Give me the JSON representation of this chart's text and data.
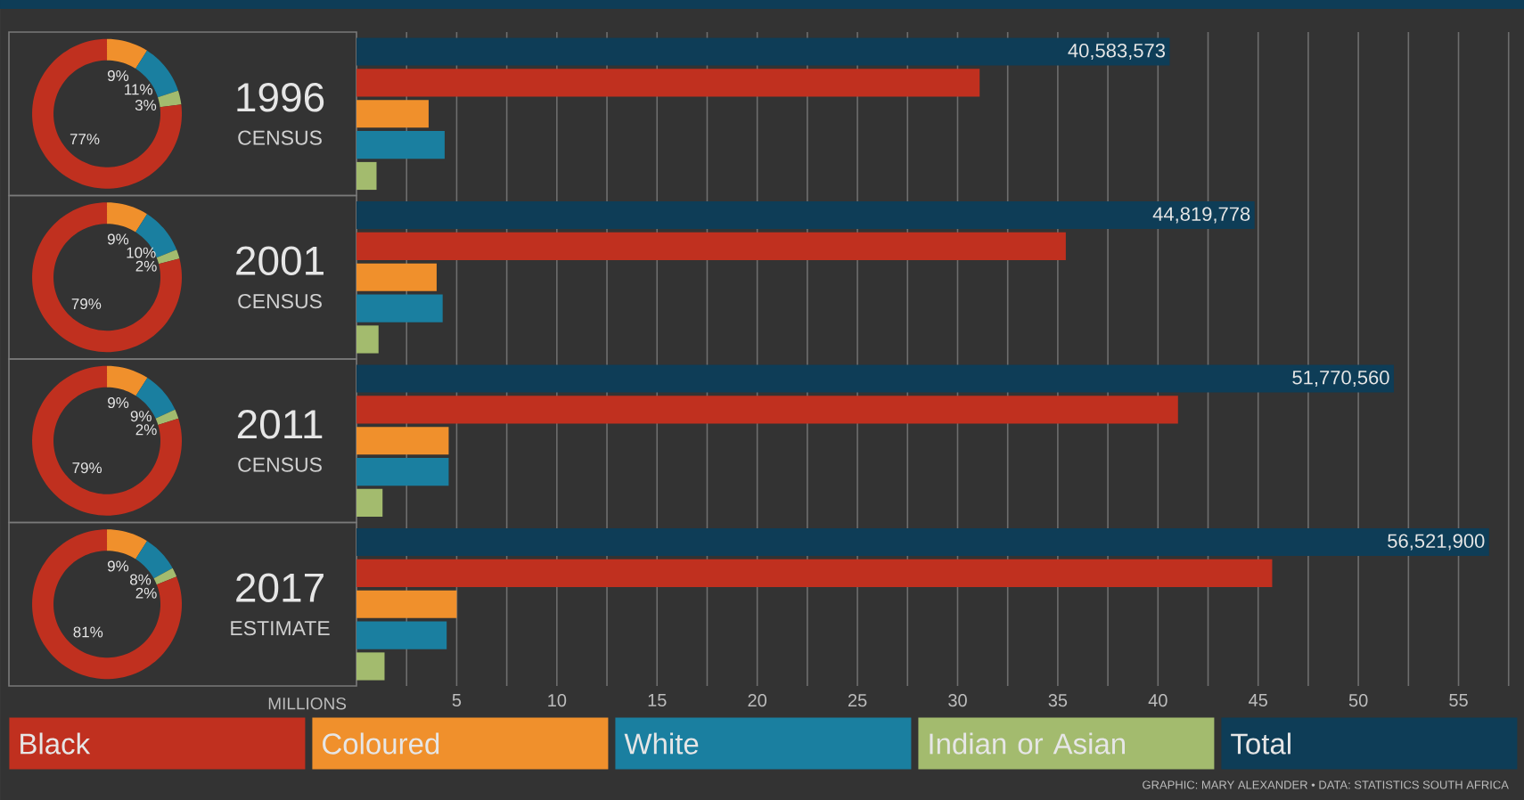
{
  "chart_data": [
    {
      "type": "donut",
      "title": "1996",
      "subtitle": "CENSUS",
      "categories": [
        null,
        null,
        null,
        null
      ],
      "values": [
        9,
        11,
        3,
        77
      ],
      "colors": [
        "#f0902c",
        "#1a7fa0",
        "#a3bb6e",
        "#c0301f"
      ],
      "value_labels": [
        "9%",
        "11%",
        "3%",
        "77%"
      ]
    },
    {
      "type": "donut",
      "title": "2001",
      "subtitle": "CENSUS",
      "categories": [
        null,
        null,
        null,
        null
      ],
      "values": [
        9,
        10,
        2,
        79
      ],
      "colors": [
        "#f0902c",
        "#1a7fa0",
        "#a3bb6e",
        "#c0301f"
      ],
      "value_labels": [
        "9%",
        "10%",
        "2%",
        "79%"
      ]
    },
    {
      "type": "donut",
      "title": "2011",
      "subtitle": "CENSUS",
      "categories": [
        null,
        null,
        null,
        null
      ],
      "values": [
        9,
        9,
        2,
        79
      ],
      "colors": [
        "#f0902c",
        "#1a7fa0",
        "#a3bb6e",
        "#c0301f"
      ],
      "value_labels": [
        "9%",
        "9%",
        "2%",
        "79%"
      ]
    },
    {
      "type": "donut",
      "title": "2017",
      "subtitle": "ESTIMATE",
      "categories": [
        null,
        null,
        null,
        null
      ],
      "values": [
        9,
        8,
        2,
        81
      ],
      "colors": [
        "#f0902c",
        "#1a7fa0",
        "#a3bb6e",
        "#c0301f"
      ],
      "value_labels": [
        "9%",
        "8%",
        "2%",
        "81%"
      ]
    },
    {
      "type": "bar",
      "orientation": "horizontal",
      "categories": [
        null,
        null,
        null,
        null
      ],
      "xlabel": "MILLIONS",
      "xlim": [
        0,
        58
      ],
      "xticks": [
        {
          "value": 2.5,
          "label": null
        },
        5,
        {
          "value": 7.5,
          "label": null
        },
        10,
        {
          "value": 12.5,
          "label": null
        },
        15,
        {
          "value": 17.5,
          "label": null
        },
        20,
        {
          "value": 22.5,
          "label": null
        },
        25,
        {
          "value": 27.5,
          "label": null
        },
        30,
        {
          "value": 32.5,
          "label": null
        },
        35,
        {
          "value": 37.5,
          "label": null
        },
        40,
        {
          "value": 42.5,
          "label": null
        },
        45,
        {
          "value": 47.5,
          "label": null
        },
        50,
        {
          "value": 52.5,
          "label": null
        },
        55,
        {
          "value": 57.5,
          "label": null
        }
      ],
      "grid": "x",
      "legend": "bottom",
      "series": [
        {
          "name": "Black",
          "color": "#c0301f",
          "values": [
            31.1,
            35.4,
            41.0,
            45.7
          ]
        },
        {
          "name": "Coloured",
          "color": "#f0902c",
          "values": [
            3.6,
            4.0,
            4.6,
            5.0
          ]
        },
        {
          "name": "White",
          "color": "#1a7fa0",
          "values": [
            4.4,
            4.3,
            4.6,
            4.5
          ]
        },
        {
          "name": "Indian or Asian",
          "color": "#a3bb6e",
          "values": [
            1.0,
            1.1,
            1.3,
            1.4
          ]
        },
        {
          "name": "Total",
          "color": "#0e3d57",
          "values": [
            40.583573,
            44.819778,
            51.77056,
            56.5219
          ]
        }
      ],
      "annotations": [
        "GRAPHIC: MARY ALEXANDER • DATA: STATISTICS SOUTH AFRICA",
        {
          "text": "40,583,573",
          "x": 40.583573
        },
        {
          "text": "44,819,778",
          "x": 44.819778
        },
        {
          "text": "51,770,560",
          "x": 51.77056
        },
        {
          "text": "56,521,900",
          "x": 56.5219
        }
      ]
    }
  ]
}
